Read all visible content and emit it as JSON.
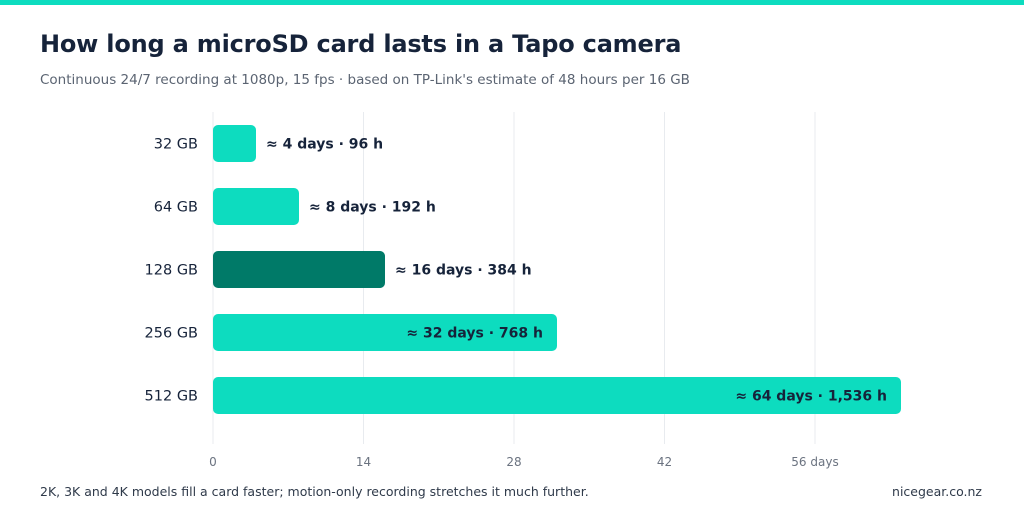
{
  "header": {
    "title": "How long a microSD card lasts in a Tapo camera",
    "subtitle": "Continuous 24/7 recording at 1080p, 15 fps · based on TP-Link's estimate of 48 hours per 16 GB"
  },
  "footer": {
    "note": "2K, 3K and 4K models fill a card faster; motion-only recording stretches it much further.",
    "source": "nicegear.co.nz"
  },
  "colors": {
    "accent": "#0ddcbf",
    "highlight": "#007a68",
    "text": "#16233a",
    "muted": "#5b6472",
    "grid": "#e8ebef"
  },
  "chart_data": {
    "type": "bar",
    "orientation": "horizontal",
    "categories": [
      "32 GB",
      "64 GB",
      "128 GB",
      "256 GB",
      "512 GB"
    ],
    "values": [
      4,
      8,
      16,
      32,
      64
    ],
    "data_labels": [
      "≈ 4 days · 96 h",
      "≈ 8 days · 192 h",
      "≈ 16 days · 384 h",
      "≈ 32 days · 768 h",
      "≈ 64 days · 1,536 h"
    ],
    "highlighted_category": "128 GB",
    "xlim": [
      0,
      64
    ],
    "x_ticks": [
      0,
      14,
      28,
      42,
      56
    ],
    "x_tick_labels": [
      "0",
      "14",
      "28",
      "42",
      "56 days"
    ],
    "grid": true,
    "xlabel": "",
    "ylabel": ""
  }
}
